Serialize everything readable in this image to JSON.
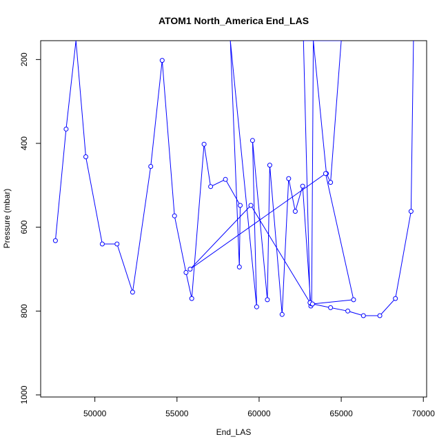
{
  "chart_data": {
    "type": "line",
    "title": "ATOM1 North_America End_LAS",
    "xlabel": "End_LAS",
    "ylabel": "Pressure (mbar)",
    "xlim": [
      46700,
      70200
    ],
    "ylim": [
      1005,
      155
    ],
    "y_reversed": true,
    "x_ticks": [
      50000,
      55000,
      60000,
      65000,
      70000
    ],
    "y_ticks": [
      200,
      400,
      600,
      800,
      1000
    ],
    "series": [
      {
        "color": "#0000ff",
        "marker": "open-circle",
        "points": [
          [
            47600,
            632
          ],
          [
            48250,
            366
          ],
          [
            48850,
            155
          ],
          [
            49450,
            432
          ],
          [
            50450,
            640
          ],
          [
            51350,
            640
          ],
          [
            52300,
            755
          ],
          [
            53400,
            455
          ],
          [
            54100,
            202
          ],
          [
            54850,
            573
          ],
          [
            55550,
            708
          ],
          [
            55900,
            770
          ],
          [
            56650,
            402
          ],
          [
            57050,
            503
          ],
          [
            57950,
            486
          ],
          [
            58850,
            548
          ],
          [
            58800,
            695
          ],
          [
            58250,
            155
          ],
          [
            59850,
            790
          ],
          [
            59600,
            393
          ],
          [
            60500,
            773
          ],
          [
            60650,
            452
          ],
          [
            61400,
            808
          ],
          [
            61800,
            484
          ],
          [
            62200,
            562
          ],
          [
            62650,
            502
          ],
          [
            63150,
            788
          ],
          [
            63200,
            783
          ],
          [
            63300,
            155
          ],
          [
            64100,
            472
          ],
          [
            64350,
            493
          ],
          [
            65000,
            155
          ],
          [
            62700,
            155
          ],
          [
            63100,
            780
          ],
          [
            59500,
            548
          ],
          [
            55800,
            700
          ],
          [
            64050,
            472
          ],
          [
            65750,
            773
          ],
          [
            63250,
            783
          ],
          [
            64350,
            792
          ],
          [
            65400,
            800
          ],
          [
            66350,
            811
          ],
          [
            67350,
            811
          ],
          [
            68300,
            770
          ],
          [
            69250,
            562
          ],
          [
            69400,
            155
          ]
        ]
      }
    ]
  }
}
